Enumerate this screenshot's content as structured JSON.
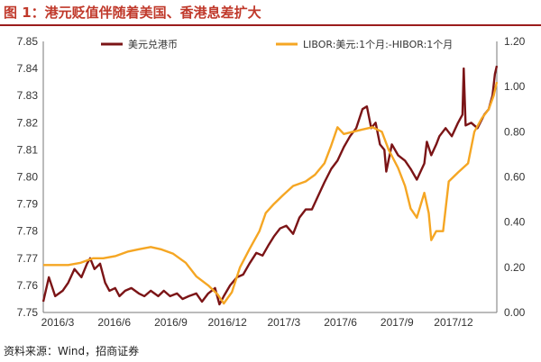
{
  "figure": {
    "title": "图 1：港元贬值伴随着美国、香港息差扩大",
    "source": "资料来源：Wind，招商证券"
  },
  "colors": {
    "hkd_series": "#7b1416",
    "spread_series": "#f5a623",
    "title": "#c0392b"
  },
  "chart_data": {
    "type": "line",
    "legend_position": "top",
    "grid": false,
    "x_ticks": [
      "2016/3",
      "2016/6",
      "2016/9",
      "2016/12",
      "2017/3",
      "2017/6",
      "2017/9",
      "2017/12"
    ],
    "x_range": [
      "2016-03-01",
      "2018-02-25"
    ],
    "y_left": {
      "range": [
        7.75,
        7.85
      ],
      "ticks": [
        "7.75",
        "7.76",
        "7.77",
        "7.78",
        "7.79",
        "7.80",
        "7.81",
        "7.82",
        "7.83",
        "7.84",
        "7.85"
      ]
    },
    "y_right": {
      "range": [
        0.0,
        1.2
      ],
      "ticks": [
        "0.00",
        "0.20",
        "0.40",
        "0.60",
        "0.80",
        "1.00",
        "1.20"
      ]
    },
    "series": [
      {
        "name": "美元兑港币",
        "axis": "left",
        "points": [
          [
            "2016-03-01",
            7.754
          ],
          [
            "2016-03-10",
            7.763
          ],
          [
            "2016-03-20",
            7.756
          ],
          [
            "2016-04-01",
            7.758
          ],
          [
            "2016-04-10",
            7.761
          ],
          [
            "2016-04-20",
            7.766
          ],
          [
            "2016-05-01",
            7.763
          ],
          [
            "2016-05-10",
            7.768
          ],
          [
            "2016-05-15",
            7.77
          ],
          [
            "2016-05-22",
            7.766
          ],
          [
            "2016-05-31",
            7.768
          ],
          [
            "2016-06-08",
            7.761
          ],
          [
            "2016-06-15",
            7.758
          ],
          [
            "2016-06-24",
            7.759
          ],
          [
            "2016-07-01",
            7.756
          ],
          [
            "2016-07-10",
            7.758
          ],
          [
            "2016-07-20",
            7.759
          ],
          [
            "2016-08-01",
            7.757
          ],
          [
            "2016-08-10",
            7.756
          ],
          [
            "2016-08-20",
            7.758
          ],
          [
            "2016-09-01",
            7.756
          ],
          [
            "2016-09-10",
            7.758
          ],
          [
            "2016-09-20",
            7.756
          ],
          [
            "2016-10-01",
            7.757
          ],
          [
            "2016-10-10",
            7.755
          ],
          [
            "2016-10-20",
            7.756
          ],
          [
            "2016-11-01",
            7.757
          ],
          [
            "2016-11-10",
            7.754
          ],
          [
            "2016-11-20",
            7.757
          ],
          [
            "2016-12-01",
            7.759
          ],
          [
            "2016-12-08",
            7.753
          ],
          [
            "2016-12-15",
            7.756
          ],
          [
            "2016-12-25",
            7.76
          ],
          [
            "2017-01-05",
            7.763
          ],
          [
            "2017-01-15",
            7.764
          ],
          [
            "2017-01-25",
            7.768
          ],
          [
            "2017-02-05",
            7.772
          ],
          [
            "2017-02-15",
            7.771
          ],
          [
            "2017-02-25",
            7.775
          ],
          [
            "2017-03-05",
            7.778
          ],
          [
            "2017-03-15",
            7.781
          ],
          [
            "2017-03-25",
            7.782
          ],
          [
            "2017-04-05",
            7.779
          ],
          [
            "2017-04-15",
            7.785
          ],
          [
            "2017-04-25",
            7.788
          ],
          [
            "2017-05-05",
            7.788
          ],
          [
            "2017-05-15",
            7.793
          ],
          [
            "2017-05-25",
            7.798
          ],
          [
            "2017-06-05",
            7.803
          ],
          [
            "2017-06-15",
            7.806
          ],
          [
            "2017-06-25",
            7.811
          ],
          [
            "2017-07-05",
            7.815
          ],
          [
            "2017-07-15",
            7.818
          ],
          [
            "2017-07-25",
            7.825
          ],
          [
            "2017-08-01",
            7.826
          ],
          [
            "2017-08-08",
            7.818
          ],
          [
            "2017-08-15",
            7.82
          ],
          [
            "2017-08-22",
            7.812
          ],
          [
            "2017-08-29",
            7.81
          ],
          [
            "2017-09-01",
            7.802
          ],
          [
            "2017-09-10",
            7.812
          ],
          [
            "2017-09-20",
            7.808
          ],
          [
            "2017-10-01",
            7.806
          ],
          [
            "2017-10-10",
            7.803
          ],
          [
            "2017-10-20",
            7.799
          ],
          [
            "2017-11-01",
            7.805
          ],
          [
            "2017-11-05",
            7.813
          ],
          [
            "2017-11-12",
            7.808
          ],
          [
            "2017-11-20",
            7.812
          ],
          [
            "2017-11-25",
            7.815
          ],
          [
            "2017-12-05",
            7.818
          ],
          [
            "2017-12-15",
            7.815
          ],
          [
            "2017-12-25",
            7.82
          ],
          [
            "2018-01-01",
            7.823
          ],
          [
            "2018-01-03",
            7.84
          ],
          [
            "2018-01-06",
            7.819
          ],
          [
            "2018-01-15",
            7.82
          ],
          [
            "2018-01-25",
            7.818
          ],
          [
            "2018-02-05",
            7.823
          ],
          [
            "2018-02-12",
            7.825
          ],
          [
            "2018-02-18",
            7.83
          ],
          [
            "2018-02-22",
            7.838
          ],
          [
            "2018-02-25",
            7.841
          ]
        ]
      },
      {
        "name": "LIBOR:美元:1个月:-HIBOR:1个月",
        "axis": "right",
        "points": [
          [
            "2016-03-01",
            0.21
          ],
          [
            "2016-03-20",
            0.21
          ],
          [
            "2016-04-10",
            0.21
          ],
          [
            "2016-04-30",
            0.22
          ],
          [
            "2016-05-20",
            0.24
          ],
          [
            "2016-06-05",
            0.24
          ],
          [
            "2016-06-25",
            0.25
          ],
          [
            "2016-07-15",
            0.27
          ],
          [
            "2016-08-01",
            0.28
          ],
          [
            "2016-08-20",
            0.29
          ],
          [
            "2016-09-05",
            0.28
          ],
          [
            "2016-09-25",
            0.26
          ],
          [
            "2016-10-15",
            0.22
          ],
          [
            "2016-11-01",
            0.16
          ],
          [
            "2016-11-20",
            0.12
          ],
          [
            "2016-12-05",
            0.08
          ],
          [
            "2016-12-15",
            0.04
          ],
          [
            "2016-12-28",
            0.09
          ],
          [
            "2017-01-10",
            0.2
          ],
          [
            "2017-01-25",
            0.28
          ],
          [
            "2017-02-10",
            0.36
          ],
          [
            "2017-02-20",
            0.44
          ],
          [
            "2017-03-05",
            0.48
          ],
          [
            "2017-03-20",
            0.52
          ],
          [
            "2017-04-05",
            0.56
          ],
          [
            "2017-04-25",
            0.58
          ],
          [
            "2017-05-10",
            0.61
          ],
          [
            "2017-05-25",
            0.66
          ],
          [
            "2017-06-05",
            0.74
          ],
          [
            "2017-06-15",
            0.82
          ],
          [
            "2017-06-25",
            0.79
          ],
          [
            "2017-07-10",
            0.8
          ],
          [
            "2017-07-25",
            0.81
          ],
          [
            "2017-08-10",
            0.82
          ],
          [
            "2017-08-25",
            0.8
          ],
          [
            "2017-09-05",
            0.72
          ],
          [
            "2017-09-20",
            0.64
          ],
          [
            "2017-10-01",
            0.56
          ],
          [
            "2017-10-10",
            0.46
          ],
          [
            "2017-10-20",
            0.42
          ],
          [
            "2017-11-01",
            0.53
          ],
          [
            "2017-11-08",
            0.44
          ],
          [
            "2017-11-12",
            0.32
          ],
          [
            "2017-11-20",
            0.36
          ],
          [
            "2017-12-01",
            0.36
          ],
          [
            "2017-12-10",
            0.58
          ],
          [
            "2017-12-25",
            0.62
          ],
          [
            "2018-01-10",
            0.66
          ],
          [
            "2018-01-20",
            0.8
          ],
          [
            "2018-02-01",
            0.86
          ],
          [
            "2018-02-12",
            0.9
          ],
          [
            "2018-02-20",
            0.96
          ],
          [
            "2018-02-25",
            1.02
          ]
        ]
      }
    ]
  }
}
